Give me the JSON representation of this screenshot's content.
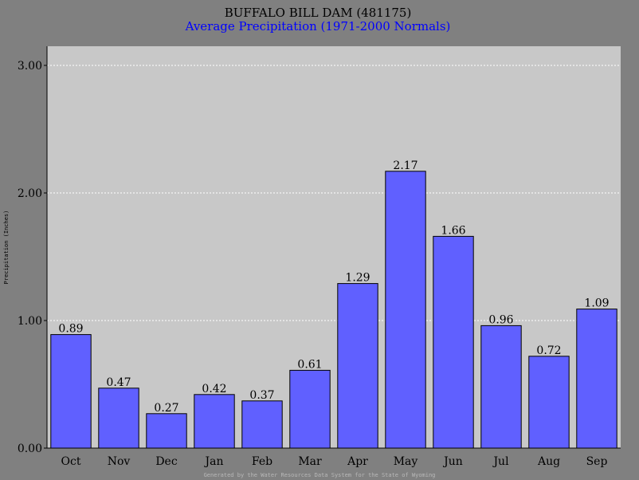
{
  "chart_data": {
    "type": "bar",
    "title": "BUFFALO BILL DAM (481175)",
    "subtitle": "Average Precipitation (1971-2000 Normals)",
    "ylabel": "Precipitation (Inches)",
    "xlabel": "",
    "footer": "Generated by the Water Resources Data System for the State of Wyoming",
    "categories": [
      "Oct",
      "Nov",
      "Dec",
      "Jan",
      "Feb",
      "Mar",
      "Apr",
      "May",
      "Jun",
      "Jul",
      "Aug",
      "Sep"
    ],
    "values": [
      0.89,
      0.47,
      0.27,
      0.42,
      0.37,
      0.61,
      1.29,
      2.17,
      1.66,
      0.96,
      0.72,
      1.09
    ],
    "value_labels": [
      "0.89",
      "0.47",
      "0.27",
      "0.42",
      "0.37",
      "0.61",
      "1.29",
      "2.17",
      "1.66",
      "0.96",
      "0.72",
      "1.09"
    ],
    "ylim": [
      0,
      3
    ],
    "yticks": [
      0,
      1,
      2,
      3
    ],
    "ytick_labels": [
      "0.00",
      "1.00",
      "2.00",
      "3.00"
    ],
    "grid": true,
    "colors": {
      "background": "#808080",
      "plot_background": "#c8c8c8",
      "bar_fill": "#6060ff",
      "bar_stroke": "#000000",
      "title": "#000000",
      "subtitle": "#0000ff",
      "footer": "#b8b8b8",
      "grid": "#ffffff"
    }
  }
}
